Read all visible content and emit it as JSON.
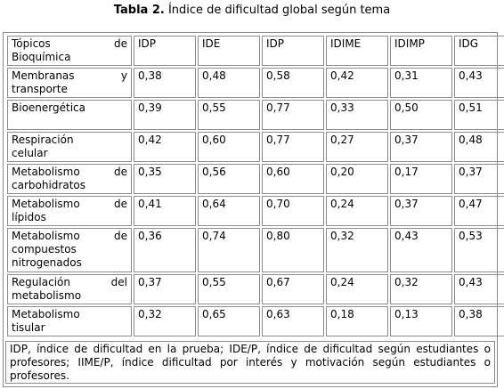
{
  "caption": {
    "label": "Tabla 2.",
    "text": "Índice de dificultad global según tema"
  },
  "table": {
    "headers": {
      "topic_line1": "Tópicos de",
      "topic_line2": "Bioquímica",
      "cols": [
        "IDP",
        "IDE",
        "IDP",
        "IDIME",
        "IDIMP",
        "IDG"
      ]
    },
    "rows": [
      {
        "topic_line1": "Membranas y",
        "topic_line2": "transporte",
        "values": [
          "0,38",
          "0,48",
          "0,58",
          "0,42",
          "0,31",
          "0,43"
        ]
      },
      {
        "topic_line1": "Bioenergética",
        "topic_line2": "",
        "values": [
          "0,39",
          "0,55",
          "0,77",
          "0,33",
          "0,50",
          "0,51"
        ]
      },
      {
        "topic_line1": "Respiración",
        "topic_line2": "celular",
        "values": [
          "0,42",
          "0,60",
          "0,77",
          "0,27",
          "0,37",
          "0,48"
        ]
      },
      {
        "topic_line1": "Metabolismo de",
        "topic_line2": "carbohidratos",
        "values": [
          "0,35",
          "0,56",
          "0,60",
          "0,20",
          "0,17",
          "0,37"
        ]
      },
      {
        "topic_line1": "Metabolismo de",
        "topic_line2": "lípidos",
        "values": [
          "0,41",
          "0,64",
          "0,70",
          "0,24",
          "0,37",
          "0,47"
        ]
      },
      {
        "topic_line1": "Metabolismo de",
        "topic_line2": "compuestos",
        "topic_line3": "nitrogenados",
        "values": [
          "0,36",
          "0,74",
          "0,80",
          "0,32",
          "0,43",
          "0,53"
        ]
      },
      {
        "topic_line1": "Regulación del",
        "topic_line2": "metabolismo",
        "values": [
          "0,37",
          "0,55",
          "0,67",
          "0,24",
          "0,32",
          "0,43"
        ]
      },
      {
        "topic_line1": "Metabolismo",
        "topic_line2": "tisular",
        "values": [
          "0,32",
          "0,65",
          "0,63",
          "0,18",
          "0,13",
          "0,38"
        ]
      }
    ],
    "footnote": "IDP, índice de dificultad en la prueba; IDE/P, índice de dificultad según estudiantes o profesores; IIME/P, índice dificultad por interés y motivación según estudiantes o profesores."
  }
}
